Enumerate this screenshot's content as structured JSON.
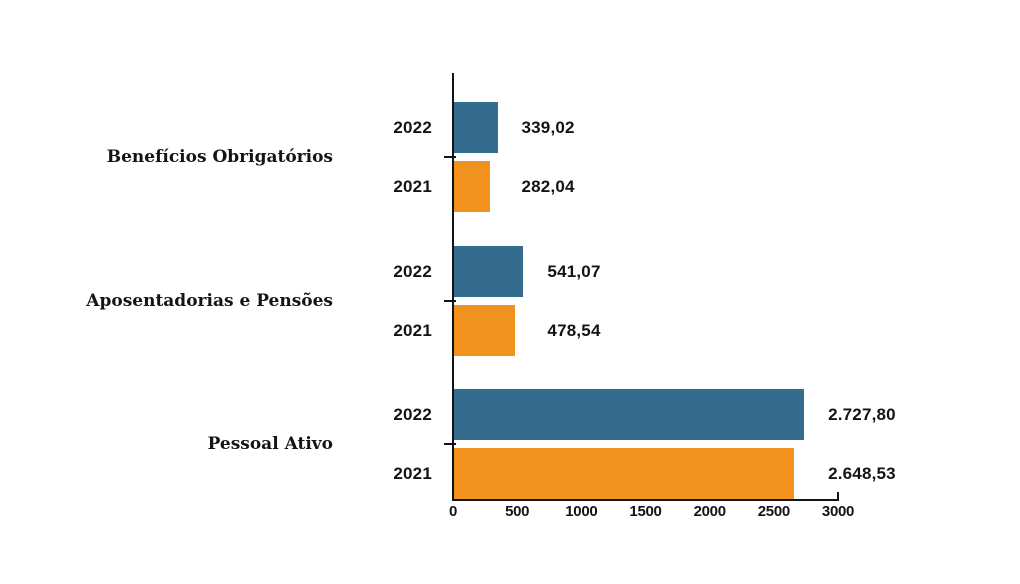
{
  "colors": {
    "bar_2022": "#356B8C",
    "bar_2021": "#F2921E",
    "axis": "#141414",
    "text": "#141414",
    "background": "#FFFFFF"
  },
  "chart_data": {
    "type": "bar",
    "orientation": "horizontal",
    "title": "",
    "xlabel": "",
    "ylabel": "",
    "grid": false,
    "legend_position": "none",
    "xlim": [
      0,
      3000
    ],
    "x_ticks": [
      0,
      500,
      1000,
      1500,
      2000,
      2500,
      3000
    ],
    "x_tick_labels": [
      "0",
      "500",
      "1000",
      "1500",
      "2000",
      "2500",
      "3000"
    ],
    "categories": [
      "Benefícios Obrigatórios",
      "Aposentadorias e Pensões",
      "Pessoal Ativo"
    ],
    "series": [
      {
        "name": "2022",
        "color": "#356B8C",
        "values": [
          339.02,
          541.07,
          2727.8
        ]
      },
      {
        "name": "2021",
        "color": "#F2921E",
        "values": [
          282.04,
          478.54,
          2648.53
        ]
      }
    ],
    "value_labels": [
      [
        "339,02",
        "541,07",
        "2.727,80"
      ],
      [
        "282,04",
        "478,54",
        "2.648,53"
      ]
    ]
  }
}
